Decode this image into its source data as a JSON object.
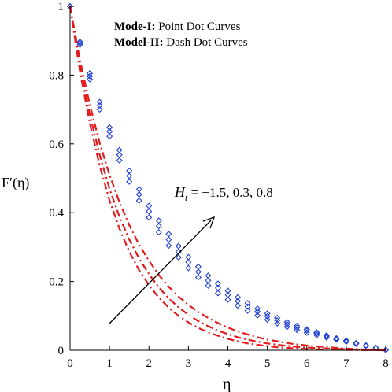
{
  "chart_data": {
    "type": "line",
    "xlabel": "η",
    "ylabel": "F′(η)",
    "xlim": [
      0,
      8
    ],
    "ylim": [
      0,
      1
    ],
    "x_ticks": [
      "0",
      "1",
      "2",
      "3",
      "4",
      "5",
      "6",
      "7",
      "8"
    ],
    "y_ticks": [
      "0",
      "0.2",
      "0.4",
      "0.6",
      "0.8",
      "1"
    ],
    "grid": false,
    "legend_lines": [
      {
        "bold": "Mode-I:",
        "text": " Point Dot Curves"
      },
      {
        "bold": "Model-II:",
        "text": " Dash Dot Curves"
      }
    ],
    "annotation": {
      "prefix": "H",
      "subscript": "t",
      "text": " = −1.5, 0.3, 0.8"
    },
    "colors": {
      "point_dot": "#1f3fd6",
      "dash_dot": "#e41a1c",
      "axis": "#000000"
    },
    "series": [
      {
        "style": "point-dot",
        "x": [
          0,
          0.25,
          0.5,
          0.75,
          1,
          1.25,
          1.5,
          1.75,
          2,
          2.25,
          2.5,
          2.75,
          3,
          3.25,
          3.5,
          3.75,
          4,
          4.25,
          4.5,
          4.75,
          5,
          5.25,
          5.5,
          5.75,
          6,
          6.25,
          6.5,
          6.75,
          7,
          7.25,
          7.5,
          7.75,
          8
        ],
        "y": [
          1,
          0.888,
          0.788,
          0.7,
          0.622,
          0.552,
          0.49,
          0.435,
          0.386,
          0.343,
          0.304,
          0.27,
          0.239,
          0.212,
          0.188,
          0.166,
          0.147,
          0.13,
          0.115,
          0.101,
          0.089,
          0.078,
          0.068,
          0.059,
          0.051,
          0.044,
          0.037,
          0.031,
          0.025,
          0.019,
          0.013,
          0.007,
          0.001
        ]
      },
      {
        "style": "point-dot",
        "x": [
          0,
          0.25,
          0.5,
          0.75,
          1,
          1.25,
          1.5,
          1.75,
          2,
          2.25,
          2.5,
          2.75,
          3,
          3.25,
          3.5,
          3.75,
          4,
          4.25,
          4.5,
          4.75,
          5,
          5.25,
          5.5,
          5.75,
          6,
          6.25,
          6.5,
          6.75,
          7,
          7.25,
          7.5,
          7.75,
          8
        ],
        "y": [
          1,
          0.893,
          0.797,
          0.712,
          0.636,
          0.568,
          0.507,
          0.453,
          0.404,
          0.361,
          0.322,
          0.287,
          0.256,
          0.228,
          0.203,
          0.181,
          0.161,
          0.143,
          0.127,
          0.112,
          0.099,
          0.087,
          0.076,
          0.066,
          0.057,
          0.049,
          0.041,
          0.034,
          0.027,
          0.02,
          0.014,
          0.007,
          0.001
        ]
      },
      {
        "style": "point-dot",
        "x": [
          0,
          0.25,
          0.5,
          0.75,
          1,
          1.25,
          1.5,
          1.75,
          2,
          2.25,
          2.5,
          2.75,
          3,
          3.25,
          3.5,
          3.75,
          4,
          4.25,
          4.5,
          4.75,
          5,
          5.25,
          5.5,
          5.75,
          6,
          6.25,
          6.5,
          6.75,
          7,
          7.25,
          7.5,
          7.75,
          8
        ],
        "y": [
          1,
          0.897,
          0.805,
          0.722,
          0.648,
          0.582,
          0.522,
          0.468,
          0.42,
          0.377,
          0.338,
          0.303,
          0.271,
          0.243,
          0.217,
          0.194,
          0.173,
          0.154,
          0.137,
          0.121,
          0.107,
          0.094,
          0.082,
          0.071,
          0.061,
          0.052,
          0.043,
          0.035,
          0.028,
          0.021,
          0.014,
          0.007,
          0.001
        ]
      },
      {
        "style": "dash-dot",
        "x": [
          0,
          0.25,
          0.5,
          0.75,
          1,
          1.25,
          1.5,
          1.75,
          2,
          2.25,
          2.5,
          2.75,
          3,
          3.25,
          3.5,
          3.75,
          4,
          4.25,
          4.5,
          4.75,
          5,
          5.25,
          5.5,
          5.75,
          6,
          6.5,
          7,
          7.5,
          8
        ],
        "y": [
          1,
          0.812,
          0.66,
          0.537,
          0.436,
          0.354,
          0.287,
          0.233,
          0.189,
          0.153,
          0.124,
          0.1,
          0.081,
          0.065,
          0.052,
          0.042,
          0.033,
          0.026,
          0.02,
          0.016,
          0.012,
          0.009,
          0.007,
          0.005,
          0.004,
          0.002,
          0.001,
          0.0005,
          0
        ]
      },
      {
        "style": "dash-dot",
        "x": [
          0,
          0.25,
          0.5,
          0.75,
          1,
          1.25,
          1.5,
          1.75,
          2,
          2.25,
          2.5,
          2.75,
          3,
          3.25,
          3.5,
          3.75,
          4,
          4.25,
          4.5,
          4.75,
          5,
          5.25,
          5.5,
          5.75,
          6,
          6.5,
          7,
          7.5,
          8
        ],
        "y": [
          1,
          0.828,
          0.686,
          0.568,
          0.47,
          0.389,
          0.322,
          0.267,
          0.221,
          0.183,
          0.151,
          0.125,
          0.103,
          0.085,
          0.07,
          0.057,
          0.047,
          0.038,
          0.031,
          0.025,
          0.02,
          0.016,
          0.013,
          0.01,
          0.008,
          0.005,
          0.003,
          0.001,
          0
        ]
      },
      {
        "style": "dash-dot",
        "x": [
          0,
          0.25,
          0.5,
          0.75,
          1,
          1.25,
          1.5,
          1.75,
          2,
          2.25,
          2.5,
          2.75,
          3,
          3.25,
          3.5,
          3.75,
          4,
          4.25,
          4.5,
          4.75,
          5,
          5.25,
          5.5,
          5.75,
          6,
          6.5,
          7,
          7.5,
          8
        ],
        "y": [
          1,
          0.845,
          0.714,
          0.603,
          0.51,
          0.431,
          0.364,
          0.307,
          0.26,
          0.219,
          0.185,
          0.156,
          0.132,
          0.111,
          0.094,
          0.079,
          0.066,
          0.055,
          0.046,
          0.038,
          0.031,
          0.026,
          0.021,
          0.017,
          0.014,
          0.009,
          0.005,
          0.002,
          0
        ]
      }
    ]
  }
}
